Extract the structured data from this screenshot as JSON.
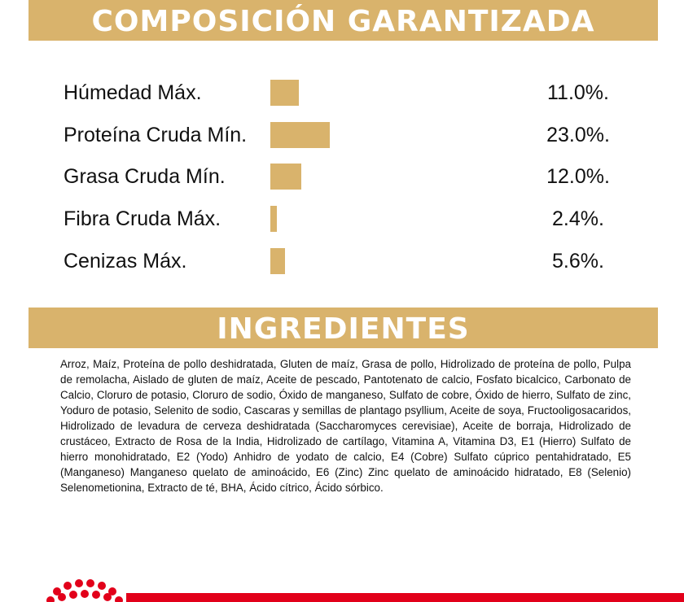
{
  "composition": {
    "title": "COMPOSICIÓN GARANTIZADA",
    "items": [
      {
        "name": "Húmedad Máx.",
        "value": 11,
        "value_label": "11.0%."
      },
      {
        "name": "Proteína Cruda Mín.",
        "value": 23,
        "value_label": "23.0%."
      },
      {
        "name": "Grasa Cruda Mín.",
        "value": 12,
        "value_label": "12.0%."
      },
      {
        "name": "Fibra Cruda Máx.",
        "value": 2.4,
        "value_label": "2.4%."
      },
      {
        "name": "Cenizas Máx.",
        "value": 5.6,
        "value_label": "5.6%."
      }
    ]
  },
  "ingredients": {
    "title": "INGREDIENTES",
    "text": "Arroz, Maíz, Proteína de pollo deshidratada, Gluten de maíz, Grasa de pollo, Hidrolizado de proteína de pollo, Pulpa de remolacha,  Aislado de gluten de maíz, Aceite de pescado, Pantotenato de calcio, Fosfato bicalcico, Carbonato de Calcio, Cloruro de potasio, Cloruro de sodio, Óxido de manganeso, Sulfato de cobre, Óxido de hierro, Sulfato de zinc, Yoduro de potasio, Selenito de sodio, Cascaras y semillas de plantago psyllium, Aceite de soya, Fructooligosacaridos, Hidrolizado de levadura de cerveza deshidratada (Saccharomyces cerevisiae), Aceite de borraja, Hidrolizado de crustáceo, Extracto de Rosa de la India, Hidrolizado de cartílago, Vitamina A, Vitamina D3, E1 (Hierro) Sulfato de hierro monohidratado, E2 (Yodo) Anhidro de yodato de calcio, E4 (Cobre) Sulfato cúprico pentahidratado, E5 (Manganeso) Manganeso quelato de aminoácido, E6 (Zinc) Zinc quelato de aminoácido hidratado, E8 (Selenio) Selenometionina, Extracto de té, BHA, Ácido cítrico, Ácido sórbico."
  }
}
